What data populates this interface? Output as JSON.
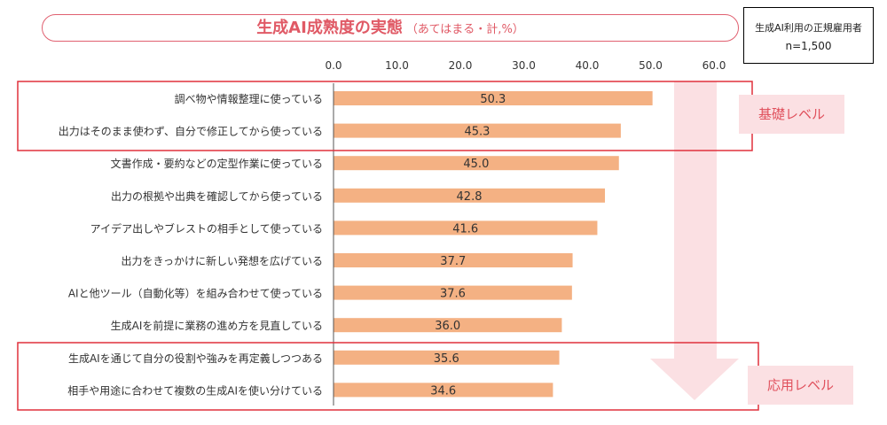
{
  "chart_data": {
    "type": "bar",
    "orientation": "horizontal",
    "title": "生成AI成熟度の実態",
    "subtitle": "（あてはまる・計,%）",
    "sample": {
      "group": "生成AI利用の正規雇用者",
      "n": "n=1,500"
    },
    "xlim": [
      0,
      60
    ],
    "xticks": [
      "0.0",
      "10.0",
      "20.0",
      "30.0",
      "40.0",
      "50.0",
      "60.0"
    ],
    "grid": false,
    "bar_color": "#f4b183",
    "categories": [
      "調べ物や情報整理に使っている",
      "出力はそのまま使わず、自分で修正してから使っている",
      "文書作成・要約などの定型作業に使っている",
      "出力の根拠や出典を確認してから使っている",
      "アイデア出しやブレストの相手として使っている",
      "出力をきっかけに新しい発想を広げている",
      "AIと他ツール（自動化等）を組み合わせて使っている",
      "生成AIを前提に業務の進め方を見直している",
      "生成AIを通じて自分の役割や強みを再定義しつつある",
      "相手や用途に合わせて複数の生成AIを使い分けている"
    ],
    "values": [
      50.3,
      45.3,
      45.0,
      42.8,
      41.6,
      37.7,
      37.6,
      36.0,
      35.6,
      34.6
    ],
    "value_labels": [
      "50.3",
      "45.3",
      "45.0",
      "42.8",
      "41.6",
      "37.7",
      "37.6",
      "36.0",
      "35.6",
      "34.6"
    ],
    "annotations": [
      {
        "label": "基礎レベル",
        "rows": [
          0,
          1
        ]
      },
      {
        "label": "応用レベル",
        "rows": [
          8,
          9
        ]
      }
    ],
    "highlight_color": "#e0303c"
  }
}
